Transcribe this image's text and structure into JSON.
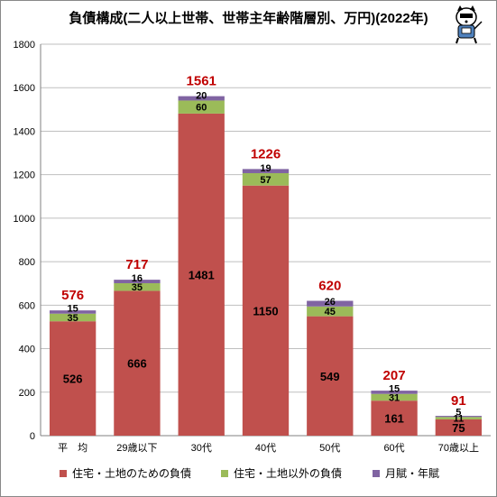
{
  "title": "負債構成(二人以上世帯、世帯主年齢階層別、万円)(2022年)",
  "colors": {
    "housing": "#c0504d",
    "other": "#9bbb59",
    "rent": "#8064a2",
    "total_label": "#c00000",
    "grid": "#bfbfbf"
  },
  "chart_data": {
    "type": "bar",
    "stacked": true,
    "title": "負債構成(二人以上世帯、世帯主年齢階層別、万円)(2022年)",
    "categories": [
      "平　均",
      "29歳以下",
      "30代",
      "40代",
      "50代",
      "60代",
      "70歳以上"
    ],
    "ylim": [
      0,
      1800
    ],
    "yticks": [
      0,
      200,
      400,
      600,
      800,
      1000,
      1200,
      1400,
      1600,
      1800
    ],
    "grid": true,
    "legend_position": "bottom",
    "series": [
      {
        "name": "住宅・土地のための負債",
        "color_key": "housing",
        "values": [
          526,
          666,
          1481,
          1150,
          549,
          161,
          75
        ]
      },
      {
        "name": "住宅・土地以外の負債",
        "color_key": "other",
        "values": [
          35,
          35,
          60,
          57,
          45,
          31,
          11
        ]
      },
      {
        "name": "月賦・年賦",
        "color_key": "rent",
        "values": [
          15,
          16,
          20,
          19,
          26,
          15,
          5
        ]
      }
    ],
    "totals": [
      576,
      717,
      1561,
      1226,
      620,
      207,
      91
    ]
  }
}
